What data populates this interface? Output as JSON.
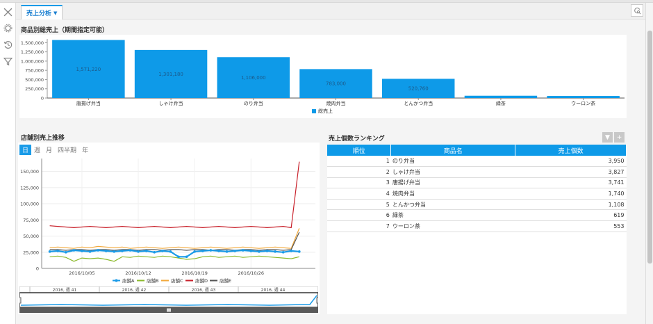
{
  "tab": {
    "label": "売上分析"
  },
  "sections": {
    "product_sales": "商品別総売上（期間指定可能）",
    "store_trend": "店舗別売上推移",
    "ranking": "売上個数ランキング"
  },
  "time_buttons": [
    {
      "label": "日",
      "active": true
    },
    {
      "label": "週",
      "active": false
    },
    {
      "label": "月",
      "active": false
    },
    {
      "label": "四半期",
      "active": false
    },
    {
      "label": "年",
      "active": false
    }
  ],
  "ranking": {
    "headers": [
      "順位",
      "商品名",
      "売上個数"
    ],
    "rows": [
      {
        "rank": "1",
        "name": "のり弁当",
        "count": "3,950"
      },
      {
        "rank": "2",
        "name": "しゃけ弁当",
        "count": "3,827"
      },
      {
        "rank": "3",
        "name": "唐揚げ弁当",
        "count": "3,741"
      },
      {
        "rank": "4",
        "name": "焼肉弁当",
        "count": "1,740"
      },
      {
        "rank": "5",
        "name": "とんかつ弁当",
        "count": "1,108"
      },
      {
        "rank": "6",
        "name": "緑茶",
        "count": "619"
      },
      {
        "rank": "7",
        "name": "ウーロン茶",
        "count": "553"
      }
    ]
  },
  "navigator": {
    "weeks": [
      "2016, 週 41",
      "2016, 週 42",
      "2016, 週 43",
      "2016, 週 44"
    ]
  },
  "chart_data": [
    {
      "type": "bar",
      "categories": [
        "唐揚げ弁当",
        "しゃけ弁当",
        "のり弁当",
        "焼肉弁当",
        "とんかつ弁当",
        "緑茶",
        "ウーロン茶"
      ],
      "series": [
        {
          "name": "総売上",
          "values": [
            1571220,
            1301180,
            1106000,
            783000,
            520760,
            61900,
            55300
          ],
          "color": "#0e9ae8"
        }
      ],
      "data_labels": [
        "1,571,220",
        "1,301,180",
        "1,106,000",
        "783,000",
        "520,760",
        "",
        ""
      ],
      "ylim": [
        0,
        1600000
      ],
      "yticks": [
        0,
        250000,
        500000,
        750000,
        1000000,
        1250000,
        1500000
      ],
      "ytick_labels": [
        "0",
        "250,000",
        "500,000",
        "750,000",
        "1,000,000",
        "1,250,000",
        "1,500,000"
      ],
      "legend": "bottom-center"
    },
    {
      "type": "line",
      "xlim": [
        "2016-09-30",
        "2016-11-03"
      ],
      "x_tick_labels": [
        {
          "date": "2016-10-05",
          "label": "2016/10/05"
        },
        {
          "date": "2016-10-12",
          "label": "2016/10/12"
        },
        {
          "date": "2016-10-19",
          "label": "2016/10/19"
        },
        {
          "date": "2016-10-26",
          "label": "2016/10/26"
        }
      ],
      "ylim": [
        0,
        170000
      ],
      "yticks": [
        0,
        25000,
        50000,
        75000,
        100000,
        125000,
        150000
      ],
      "ytick_labels": [
        "0",
        "25,000",
        "50,000",
        "75,000",
        "100,000",
        "125,000",
        "150,000"
      ],
      "series": [
        {
          "name": "店舗A",
          "color": "#1a9be8",
          "markers": true,
          "points": [
            [
              "2016-10-01",
              26000
            ],
            [
              "2016-10-02",
              27000
            ],
            [
              "2016-10-03",
              25000
            ],
            [
              "2016-10-04",
              28000
            ],
            [
              "2016-10-05",
              27000
            ],
            [
              "2016-10-06",
              26000
            ],
            [
              "2016-10-07",
              28000
            ],
            [
              "2016-10-08",
              27000
            ],
            [
              "2016-10-09",
              26000
            ],
            [
              "2016-10-10",
              27000
            ],
            [
              "2016-10-11",
              28000
            ],
            [
              "2016-10-12",
              26000
            ],
            [
              "2016-10-13",
              27000
            ],
            [
              "2016-10-14",
              25000
            ],
            [
              "2016-10-15",
              27000
            ],
            [
              "2016-10-16",
              26000
            ],
            [
              "2016-10-17",
              18000
            ],
            [
              "2016-10-18",
              18000
            ],
            [
              "2016-10-19",
              26000
            ],
            [
              "2016-10-20",
              27000
            ],
            [
              "2016-10-21",
              28000
            ],
            [
              "2016-10-22",
              27000
            ],
            [
              "2016-10-23",
              26000
            ],
            [
              "2016-10-24",
              27000
            ],
            [
              "2016-10-25",
              28000
            ],
            [
              "2016-10-26",
              27000
            ],
            [
              "2016-10-27",
              26000
            ],
            [
              "2016-10-28",
              27000
            ],
            [
              "2016-10-29",
              26000
            ],
            [
              "2016-10-30",
              25000
            ],
            [
              "2016-10-31",
              27000
            ],
            [
              "2016-11-01",
              26000
            ]
          ]
        },
        {
          "name": "店舗B",
          "color": "#8bb92a",
          "markers": false,
          "points": [
            [
              "2016-10-01",
              18000
            ],
            [
              "2016-10-02",
              19000
            ],
            [
              "2016-10-03",
              17000
            ],
            [
              "2016-10-04",
              11000
            ],
            [
              "2016-10-05",
              16000
            ],
            [
              "2016-10-06",
              15000
            ],
            [
              "2016-10-07",
              16000
            ],
            [
              "2016-10-08",
              14000
            ],
            [
              "2016-10-09",
              11000
            ],
            [
              "2016-10-10",
              18000
            ],
            [
              "2016-10-11",
              17000
            ],
            [
              "2016-10-12",
              19000
            ],
            [
              "2016-10-13",
              18000
            ],
            [
              "2016-10-14",
              17000
            ],
            [
              "2016-10-15",
              19000
            ],
            [
              "2016-10-16",
              18000
            ],
            [
              "2016-10-17",
              16000
            ],
            [
              "2016-10-18",
              14000
            ],
            [
              "2016-10-19",
              15000
            ],
            [
              "2016-10-20",
              18000
            ],
            [
              "2016-10-21",
              19000
            ],
            [
              "2016-10-22",
              17000
            ],
            [
              "2016-10-23",
              18000
            ],
            [
              "2016-10-24",
              19000
            ],
            [
              "2016-10-25",
              17000
            ],
            [
              "2016-10-26",
              18000
            ],
            [
              "2016-10-27",
              19000
            ],
            [
              "2016-10-28",
              18000
            ],
            [
              "2016-10-29",
              17000
            ],
            [
              "2016-10-30",
              16000
            ],
            [
              "2016-10-31",
              15000
            ],
            [
              "2016-11-01",
              18000
            ]
          ]
        },
        {
          "name": "店舗C",
          "color": "#f2a93b",
          "markers": false,
          "points": [
            [
              "2016-10-01",
              32000
            ],
            [
              "2016-10-02",
              33000
            ],
            [
              "2016-10-03",
              32000
            ],
            [
              "2016-10-04",
              31000
            ],
            [
              "2016-10-05",
              33000
            ],
            [
              "2016-10-06",
              32000
            ],
            [
              "2016-10-07",
              34000
            ],
            [
              "2016-10-08",
              33000
            ],
            [
              "2016-10-09",
              32000
            ],
            [
              "2016-10-10",
              33000
            ],
            [
              "2016-10-11",
              31000
            ],
            [
              "2016-10-12",
              32000
            ],
            [
              "2016-10-13",
              33000
            ],
            [
              "2016-10-14",
              32000
            ],
            [
              "2016-10-15",
              31000
            ],
            [
              "2016-10-16",
              32000
            ],
            [
              "2016-10-17",
              33000
            ],
            [
              "2016-10-18",
              32000
            ],
            [
              "2016-10-19",
              31000
            ],
            [
              "2016-10-20",
              32000
            ],
            [
              "2016-10-21",
              33000
            ],
            [
              "2016-10-22",
              32000
            ],
            [
              "2016-10-23",
              31000
            ],
            [
              "2016-10-24",
              32000
            ],
            [
              "2016-10-25",
              33000
            ],
            [
              "2016-10-26",
              32000
            ],
            [
              "2016-10-27",
              31000
            ],
            [
              "2016-10-28",
              32000
            ],
            [
              "2016-10-29",
              33000
            ],
            [
              "2016-10-30",
              32000
            ],
            [
              "2016-10-31",
              31000
            ],
            [
              "2016-11-01",
              62000
            ]
          ]
        },
        {
          "name": "店舗D",
          "color": "#c8202a",
          "markers": false,
          "points": [
            [
              "2016-10-01",
              66000
            ],
            [
              "2016-10-02",
              65000
            ],
            [
              "2016-10-03",
              64000
            ],
            [
              "2016-10-04",
              63000
            ],
            [
              "2016-10-05",
              64000
            ],
            [
              "2016-10-06",
              65000
            ],
            [
              "2016-10-07",
              64000
            ],
            [
              "2016-10-08",
              63000
            ],
            [
              "2016-10-09",
              64000
            ],
            [
              "2016-10-10",
              65000
            ],
            [
              "2016-10-11",
              64000
            ],
            [
              "2016-10-12",
              63000
            ],
            [
              "2016-10-13",
              64000
            ],
            [
              "2016-10-14",
              65000
            ],
            [
              "2016-10-15",
              64000
            ],
            [
              "2016-10-16",
              63000
            ],
            [
              "2016-10-17",
              64000
            ],
            [
              "2016-10-18",
              65000
            ],
            [
              "2016-10-19",
              64000
            ],
            [
              "2016-10-20",
              63000
            ],
            [
              "2016-10-21",
              64000
            ],
            [
              "2016-10-22",
              65000
            ],
            [
              "2016-10-23",
              64000
            ],
            [
              "2016-10-24",
              63000
            ],
            [
              "2016-10-25",
              64000
            ],
            [
              "2016-10-26",
              65000
            ],
            [
              "2016-10-27",
              64000
            ],
            [
              "2016-10-28",
              63000
            ],
            [
              "2016-10-29",
              64000
            ],
            [
              "2016-10-30",
              65000
            ],
            [
              "2016-10-31",
              63000
            ],
            [
              "2016-11-01",
              165000
            ]
          ]
        },
        {
          "name": "店舗E",
          "color": "#555555",
          "markers": false,
          "points": [
            [
              "2016-10-01",
              29000
            ],
            [
              "2016-10-02",
              29000
            ],
            [
              "2016-10-03",
              28000
            ],
            [
              "2016-10-04",
              29000
            ],
            [
              "2016-10-05",
              29000
            ],
            [
              "2016-10-06",
              28000
            ],
            [
              "2016-10-07",
              29000
            ],
            [
              "2016-10-08",
              29000
            ],
            [
              "2016-10-09",
              28000
            ],
            [
              "2016-10-10",
              29000
            ],
            [
              "2016-10-11",
              29000
            ],
            [
              "2016-10-12",
              28000
            ],
            [
              "2016-10-13",
              29000
            ],
            [
              "2016-10-14",
              29000
            ],
            [
              "2016-10-15",
              28000
            ],
            [
              "2016-10-16",
              29000
            ],
            [
              "2016-10-17",
              29000
            ],
            [
              "2016-10-18",
              28000
            ],
            [
              "2016-10-19",
              29000
            ],
            [
              "2016-10-20",
              29000
            ],
            [
              "2016-10-21",
              28000
            ],
            [
              "2016-10-22",
              29000
            ],
            [
              "2016-10-23",
              29000
            ],
            [
              "2016-10-24",
              28000
            ],
            [
              "2016-10-25",
              29000
            ],
            [
              "2016-10-26",
              29000
            ],
            [
              "2016-10-27",
              28000
            ],
            [
              "2016-10-28",
              29000
            ],
            [
              "2016-10-29",
              29000
            ],
            [
              "2016-10-30",
              28000
            ],
            [
              "2016-10-31",
              29000
            ],
            [
              "2016-11-01",
              56000
            ]
          ]
        }
      ],
      "legend": "bottom-center"
    }
  ]
}
